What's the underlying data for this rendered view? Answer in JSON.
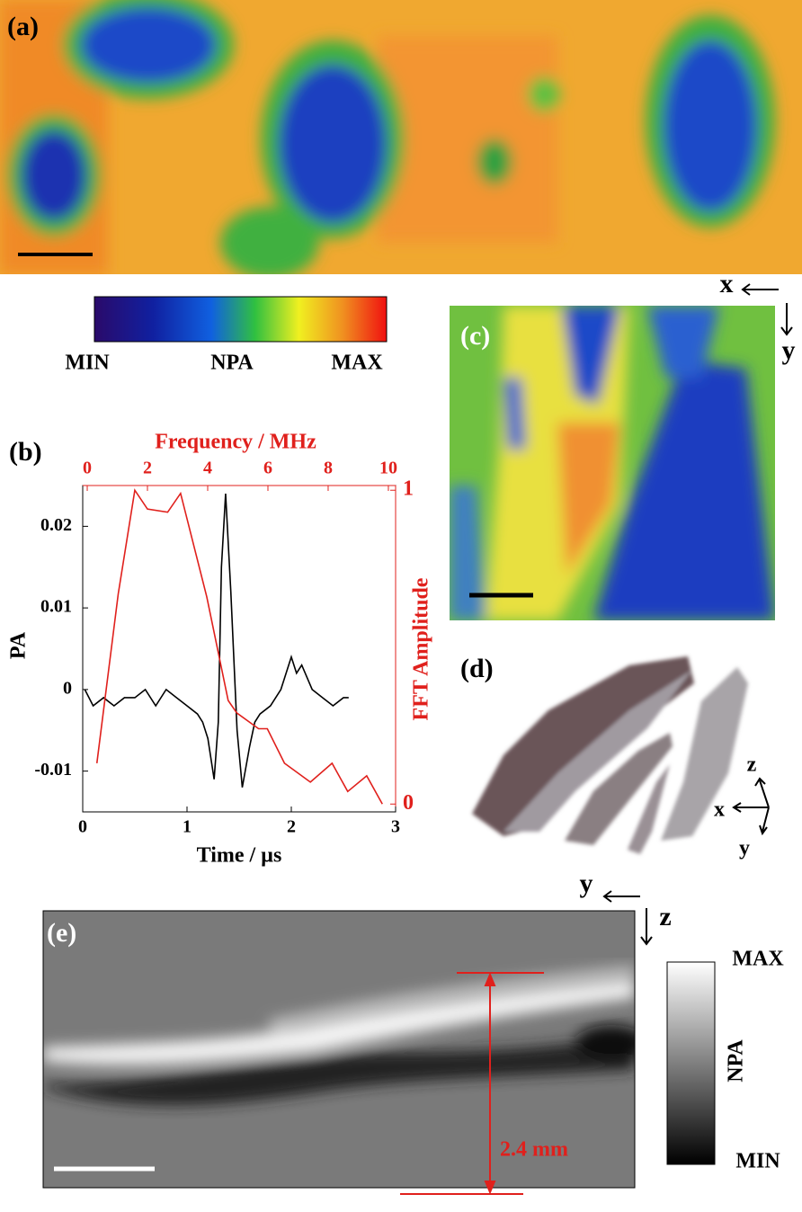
{
  "panel_labels": [
    "(a)",
    "(b)",
    "(c)",
    "(d)",
    "(e)"
  ],
  "colorbar_a": {
    "min": "MIN",
    "label": "NPA",
    "max": "MAX"
  },
  "axes_c": {
    "x": "x",
    "y": "y"
  },
  "axes_d": {
    "z": "z",
    "x": "x",
    "y": "y"
  },
  "axes_e": {
    "y": "y",
    "z": "z"
  },
  "colorbar_e": {
    "max": "MAX",
    "label": "NPA",
    "min": "MIN"
  },
  "annotation_e": "2.4 mm",
  "chart_data": {
    "type": "line",
    "xlabel": "Time / µs",
    "ylabel": "PA",
    "x2label": "Frequency / MHz",
    "y2label": "FFT Amplitude",
    "xlim": [
      0,
      3
    ],
    "xticks": [
      0,
      1,
      2,
      3
    ],
    "ylim": [
      -0.015,
      0.025
    ],
    "yticks": [
      -0.01,
      0,
      0.01,
      0.02
    ],
    "x2lim": [
      -0.15,
      10.24
    ],
    "x2ticks": [
      0,
      2,
      4,
      6,
      8,
      10
    ],
    "y2lim": [
      -0.025,
      1.015
    ],
    "y2ticks": [
      0,
      1
    ],
    "series": [
      {
        "color": "#000000",
        "x": [
          0.02,
          0.1,
          0.2,
          0.3,
          0.4,
          0.5,
          0.6,
          0.7,
          0.8,
          0.9,
          1.0,
          1.1,
          1.15,
          1.2,
          1.26,
          1.3,
          1.33,
          1.37,
          1.42,
          1.48,
          1.53,
          1.6,
          1.65,
          1.7,
          1.8,
          1.9,
          1.95,
          2.0,
          2.05,
          2.1,
          2.2,
          2.3,
          2.4,
          2.5,
          2.55
        ],
        "values": [
          0,
          -0.002,
          -0.001,
          -0.002,
          -0.001,
          -0.001,
          0,
          -0.002,
          0,
          -0.001,
          -0.002,
          -0.003,
          -0.004,
          -0.006,
          -0.011,
          -0.004,
          0.015,
          0.024,
          0.012,
          -0.005,
          -0.012,
          -0.007,
          -0.004,
          -0.003,
          -0.002,
          0,
          0.002,
          0.004,
          0.002,
          0.003,
          0,
          -0.001,
          -0.002,
          -0.001,
          -0.001
        ]
      },
      {
        "color": "#e0201c",
        "axis": "y2",
        "xaxis": "x2",
        "x": [
          0.32,
          1.03,
          1.58,
          2.0,
          2.67,
          3.1,
          3.97,
          4.68,
          4.97,
          5.69,
          5.98,
          6.55,
          7.41,
          8.13,
          8.65,
          9.28,
          9.8
        ],
        "values": [
          0.13,
          0.67,
          1.0,
          0.94,
          0.93,
          0.99,
          0.66,
          0.33,
          0.29,
          0.24,
          0.24,
          0.13,
          0.07,
          0.13,
          0.04,
          0.09,
          0
        ]
      }
    ]
  }
}
